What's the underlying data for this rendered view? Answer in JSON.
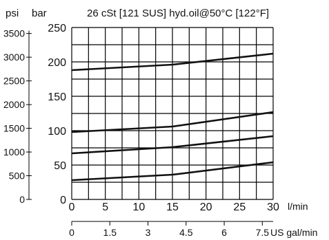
{
  "chart_data": {
    "type": "line",
    "title": "26 cSt [121 SUS] hyd.oil@50°C [122°F]",
    "y_left_unit": "psi",
    "y_right_unit": "bar",
    "x_unit": "l/min",
    "x2_unit": "US gal/min",
    "xlim": [
      0,
      30
    ],
    "ylim_bar": [
      0,
      250
    ],
    "ylim_psi": [
      0,
      3625.94
    ],
    "grid": true,
    "x_ticks": [
      "0",
      "5",
      "10",
      "15",
      "20",
      "25",
      "30"
    ],
    "x_tick_values": [
      0,
      5,
      10,
      15,
      20,
      25,
      30
    ],
    "x2_ticks": [
      "0",
      "1.5",
      "3",
      "4.5",
      "6",
      "7.5"
    ],
    "x2_tick_values": [
      0,
      1.5,
      3,
      4.5,
      6,
      7.5
    ],
    "bar_ticks": [
      "0",
      "50",
      "100",
      "150",
      "200",
      "250"
    ],
    "bar_tick_values": [
      0,
      50,
      100,
      150,
      200,
      250
    ],
    "psi_ticks": [
      "0",
      "500",
      "1000",
      "1500",
      "2000",
      "2500",
      "3000",
      "3500"
    ],
    "psi_tick_values": [
      0,
      500,
      1000,
      1500,
      2000,
      2500,
      3000,
      3500
    ],
    "series": [
      {
        "x": [
          0,
          15,
          30
        ],
        "values": [
          28,
          36,
          54
        ]
      },
      {
        "x": [
          0,
          15,
          30
        ],
        "values": [
          67,
          76,
          92
        ]
      },
      {
        "x": [
          0,
          15,
          30
        ],
        "values": [
          98,
          106,
          127
        ]
      },
      {
        "x": [
          0,
          15,
          30
        ],
        "values": [
          188,
          196,
          212
        ]
      }
    ]
  }
}
